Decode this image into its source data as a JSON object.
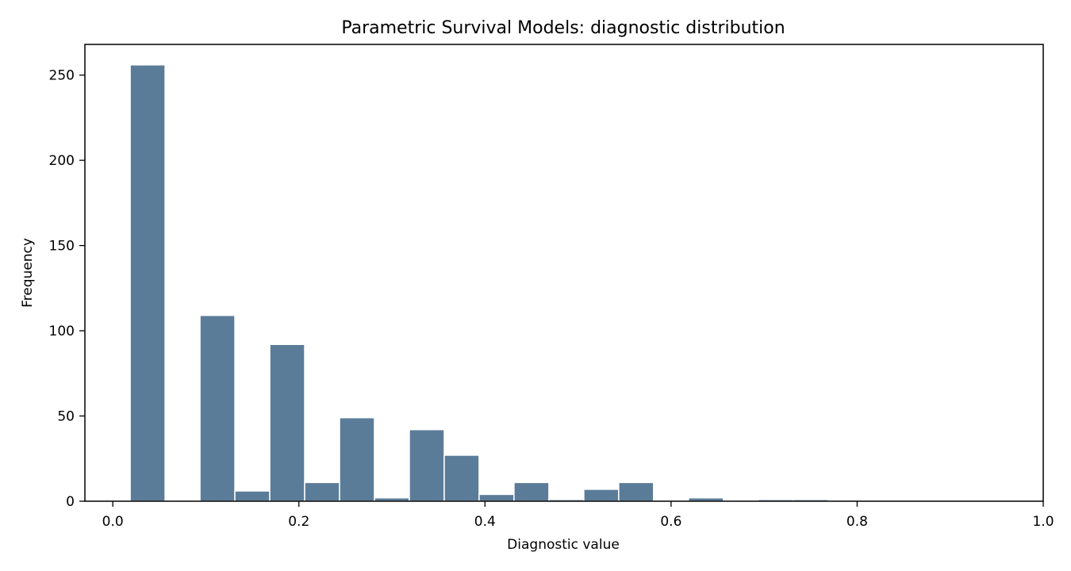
{
  "chart_data": {
    "type": "bar",
    "title": "Parametric Survival Models: diagnostic distribution",
    "xlabel": "Diagnostic value",
    "ylabel": "Frequency",
    "xlim": [
      -0.03,
      1.0
    ],
    "ylim": [
      0,
      268
    ],
    "xticks": [
      0.0,
      0.2,
      0.4,
      0.6,
      0.8,
      1.0
    ],
    "xtick_labels": [
      "0.0",
      "0.2",
      "0.4",
      "0.6",
      "0.8",
      "1.0"
    ],
    "yticks": [
      0,
      50,
      100,
      150,
      200,
      250
    ],
    "ytick_labels": [
      "0",
      "50",
      "100",
      "150",
      "200",
      "250"
    ],
    "grid": false,
    "bar_color": "#5b7c99",
    "bins": [
      {
        "x0": 0.0187,
        "x1": 0.0562,
        "count": 256
      },
      {
        "x0": 0.0562,
        "x1": 0.0937,
        "count": 0
      },
      {
        "x0": 0.0937,
        "x1": 0.1312,
        "count": 109
      },
      {
        "x0": 0.1312,
        "x1": 0.1687,
        "count": 6
      },
      {
        "x0": 0.1687,
        "x1": 0.2062,
        "count": 92
      },
      {
        "x0": 0.2062,
        "x1": 0.2437,
        "count": 11
      },
      {
        "x0": 0.2437,
        "x1": 0.2812,
        "count": 49
      },
      {
        "x0": 0.2812,
        "x1": 0.3187,
        "count": 2
      },
      {
        "x0": 0.3187,
        "x1": 0.3562,
        "count": 42
      },
      {
        "x0": 0.3562,
        "x1": 0.3937,
        "count": 27
      },
      {
        "x0": 0.3937,
        "x1": 0.4312,
        "count": 4
      },
      {
        "x0": 0.4312,
        "x1": 0.4687,
        "count": 11
      },
      {
        "x0": 0.4687,
        "x1": 0.5062,
        "count": 1
      },
      {
        "x0": 0.5062,
        "x1": 0.5437,
        "count": 7
      },
      {
        "x0": 0.5437,
        "x1": 0.5812,
        "count": 11
      },
      {
        "x0": 0.5812,
        "x1": 0.6187,
        "count": 0
      },
      {
        "x0": 0.6187,
        "x1": 0.6562,
        "count": 2
      },
      {
        "x0": 0.6562,
        "x1": 0.6937,
        "count": 0
      },
      {
        "x0": 0.6937,
        "x1": 0.7312,
        "count": 1
      },
      {
        "x0": 0.7312,
        "x1": 0.7687,
        "count": 1
      },
      {
        "x0": 0.7687,
        "x1": 0.8062,
        "count": 0.5
      },
      {
        "x0": 0.8062,
        "x1": 0.8437,
        "count": 0.5
      },
      {
        "x0": 0.8437,
        "x1": 0.8812,
        "count": 0
      },
      {
        "x0": 0.8812,
        "x1": 0.9187,
        "count": 0.5
      },
      {
        "x0": 0.9187,
        "x1": 0.9562,
        "count": 0.5
      }
    ]
  }
}
